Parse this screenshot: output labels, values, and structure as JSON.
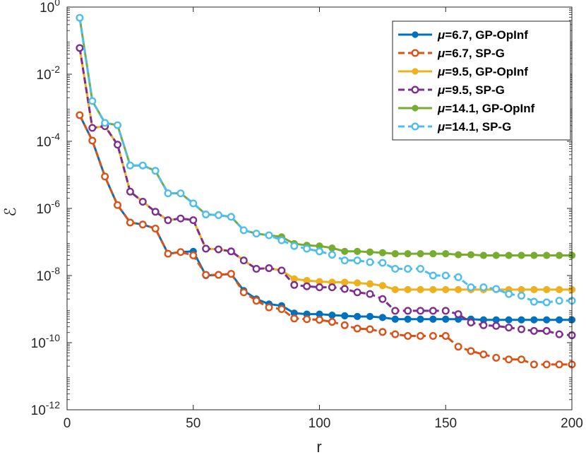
{
  "chart_data": {
    "type": "line",
    "title": "",
    "xlabel": "r",
    "ylabel": "ℰ",
    "xlim": [
      0,
      200
    ],
    "ylim_log10": [
      -12,
      0
    ],
    "yscale": "log",
    "xticks": [
      0,
      50,
      100,
      150,
      200
    ],
    "yticks_exponents": [
      -12,
      -10,
      -8,
      -6,
      -4,
      -2,
      0
    ],
    "ytick_base": "10",
    "grid": false,
    "legend_position": "top-right",
    "x": [
      5,
      10,
      15,
      20,
      25,
      30,
      35,
      40,
      45,
      50,
      55,
      60,
      65,
      70,
      75,
      80,
      85,
      90,
      95,
      100,
      105,
      110,
      115,
      120,
      125,
      130,
      135,
      140,
      145,
      150,
      155,
      160,
      165,
      170,
      175,
      180,
      185,
      190,
      195,
      200
    ],
    "series": [
      {
        "name": "μ=6.7, GP-OpInf",
        "mu": "6.7",
        "method": "GP-OpInf",
        "color": "#0072BD",
        "style": "solid",
        "marker": "dot",
        "log10_values": [
          -3.22,
          -3.98,
          -5.05,
          -5.9,
          -6.42,
          -6.48,
          -6.6,
          -7.35,
          -7.3,
          -7.28,
          -8.0,
          -7.98,
          -7.95,
          -8.45,
          -8.7,
          -8.85,
          -8.9,
          -9.12,
          -9.15,
          -9.15,
          -9.18,
          -9.2,
          -9.22,
          -9.22,
          -9.25,
          -9.3,
          -9.3,
          -9.3,
          -9.3,
          -9.3,
          -9.3,
          -9.3,
          -9.32,
          -9.32,
          -9.32,
          -9.32,
          -9.32,
          -9.32,
          -9.32,
          -9.32
        ]
      },
      {
        "name": "μ=6.7, SP-G",
        "mu": "6.7",
        "method": "SP-G",
        "color": "#D95319",
        "style": "dashed",
        "marker": "circle",
        "log10_values": [
          -3.22,
          -3.98,
          -5.05,
          -5.9,
          -6.42,
          -6.48,
          -6.6,
          -7.35,
          -7.3,
          -7.4,
          -7.98,
          -7.98,
          -7.95,
          -8.5,
          -8.75,
          -8.95,
          -9.0,
          -9.28,
          -9.3,
          -9.32,
          -9.38,
          -9.48,
          -9.58,
          -9.6,
          -9.68,
          -9.75,
          -9.8,
          -9.8,
          -9.8,
          -9.8,
          -10.12,
          -10.25,
          -10.35,
          -10.45,
          -10.5,
          -10.5,
          -10.65,
          -10.65,
          -10.65,
          -10.65
        ]
      },
      {
        "name": "μ=9.5, GP-OpInf",
        "mu": "9.5",
        "method": "GP-OpInf",
        "color": "#EDB120",
        "style": "solid",
        "marker": "dot",
        "log10_values": [
          -1.22,
          -3.6,
          -3.55,
          -4.1,
          -5.5,
          -5.8,
          -6.1,
          -6.35,
          -6.3,
          -6.35,
          -7.2,
          -7.22,
          -7.28,
          -7.55,
          -7.8,
          -7.78,
          -7.85,
          -8.1,
          -8.15,
          -8.18,
          -8.2,
          -8.2,
          -8.22,
          -8.25,
          -8.3,
          -8.42,
          -8.42,
          -8.42,
          -8.42,
          -8.42,
          -8.42,
          -8.42,
          -8.42,
          -8.42,
          -8.42,
          -8.42,
          -8.42,
          -8.42,
          -8.42,
          -8.42
        ]
      },
      {
        "name": "μ=9.5, SP-G",
        "mu": "9.5",
        "method": "SP-G",
        "color": "#7E2F8E",
        "style": "dashed",
        "marker": "circle",
        "log10_values": [
          -1.22,
          -3.6,
          -3.55,
          -4.1,
          -5.5,
          -5.8,
          -6.1,
          -6.35,
          -6.3,
          -6.35,
          -7.2,
          -7.22,
          -7.28,
          -7.55,
          -7.8,
          -7.78,
          -7.85,
          -8.28,
          -8.32,
          -8.35,
          -8.35,
          -8.4,
          -8.5,
          -8.55,
          -8.7,
          -9.05,
          -9.05,
          -9.05,
          -9.05,
          -9.05,
          -9.15,
          -9.4,
          -9.48,
          -9.5,
          -9.55,
          -9.6,
          -9.65,
          -9.65,
          -9.75,
          -9.78
        ]
      },
      {
        "name": "μ=14.1, GP-OpInf",
        "mu": "14.1",
        "method": "GP-OpInf",
        "color": "#77AC30",
        "style": "solid",
        "marker": "dot",
        "log10_values": [
          -0.32,
          -2.8,
          -3.45,
          -3.52,
          -4.72,
          -4.72,
          -4.88,
          -5.55,
          -5.55,
          -5.85,
          -6.18,
          -6.2,
          -6.25,
          -6.65,
          -6.75,
          -6.8,
          -6.85,
          -7.05,
          -7.1,
          -7.12,
          -7.18,
          -7.28,
          -7.28,
          -7.3,
          -7.32,
          -7.35,
          -7.35,
          -7.35,
          -7.35,
          -7.35,
          -7.38,
          -7.38,
          -7.4,
          -7.4,
          -7.4,
          -7.4,
          -7.4,
          -7.4,
          -7.4,
          -7.4
        ]
      },
      {
        "name": "μ=14.1, SP-G",
        "mu": "14.1",
        "method": "SP-G",
        "color": "#4DBEEE",
        "style": "dashed",
        "marker": "circle",
        "log10_values": [
          -0.32,
          -2.8,
          -3.45,
          -3.52,
          -4.72,
          -4.72,
          -4.88,
          -5.55,
          -5.55,
          -5.85,
          -6.18,
          -6.2,
          -6.25,
          -6.65,
          -6.75,
          -6.8,
          -6.95,
          -7.12,
          -7.2,
          -7.28,
          -7.38,
          -7.55,
          -7.55,
          -7.6,
          -7.62,
          -7.8,
          -7.8,
          -7.8,
          -8.0,
          -8.0,
          -8.05,
          -8.35,
          -8.35,
          -8.4,
          -8.55,
          -8.6,
          -8.78,
          -8.8,
          -8.75,
          -8.75
        ]
      }
    ]
  }
}
